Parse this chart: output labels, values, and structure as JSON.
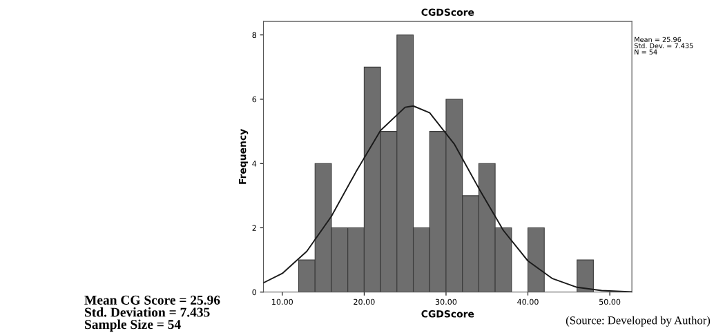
{
  "chart_data": {
    "type": "histogram",
    "title": "CGDScore",
    "xlabel": "CGDScore",
    "ylabel": "Frequency",
    "bins": [
      12,
      14,
      16,
      18,
      20,
      22,
      24,
      26,
      28,
      30,
      32,
      34,
      36,
      38,
      40,
      42,
      44,
      46,
      48
    ],
    "values": [
      1,
      4,
      2,
      2,
      7,
      5,
      8,
      2,
      5,
      6,
      3,
      4,
      2,
      0,
      2,
      0,
      0,
      1
    ],
    "color": "#6e6e6e",
    "series": [
      {
        "type": "line",
        "color": "#1a1a1a",
        "x": [
          7.7,
          10,
          13,
          16,
          19,
          22,
          25,
          26,
          28,
          31,
          34,
          37,
          40,
          43,
          46,
          49,
          52.7
        ],
        "values": [
          0.29,
          0.58,
          1.27,
          2.36,
          3.74,
          5.03,
          5.75,
          5.79,
          5.58,
          4.61,
          3.23,
          1.92,
          0.97,
          0.42,
          0.15,
          0.05,
          0.01
        ]
      }
    ],
    "xlim": [
      7.7,
      52.7
    ],
    "ylim": [
      0,
      8.42
    ],
    "xticks": [
      {
        "value": 10,
        "label": "10.00"
      },
      {
        "value": 20,
        "label": "20.00"
      },
      {
        "value": 30,
        "label": "30.00"
      },
      {
        "value": 40,
        "label": "40.00"
      },
      {
        "value": 50,
        "label": "50.00"
      }
    ],
    "yticks": [
      0,
      2,
      4,
      6,
      8
    ],
    "grid": false,
    "annotations": [
      "Mean = 25.96\nStd. Dev. = 7.435\nN = 54",
      "Mean CG Score = 25.96\nStd. Deviation = 7.435\nSample Size = 54",
      "(Source: Developed by Author)"
    ]
  }
}
